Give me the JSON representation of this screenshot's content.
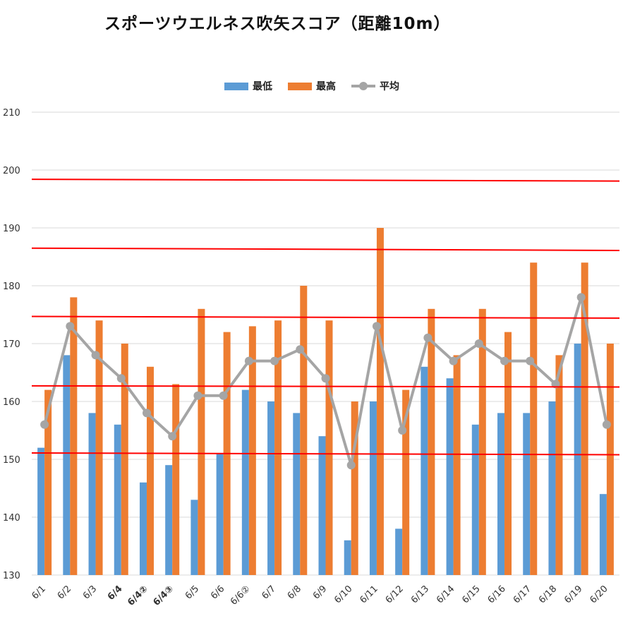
{
  "chart_data": {
    "type": "bar",
    "title": "スポーツウエルネス吹矢スコア（距離10m）",
    "categories": [
      "6/1",
      "6/2",
      "6/3",
      "6/4",
      "6/4②",
      "6/4③",
      "6/5",
      "6/6",
      "6/6②",
      "6/7",
      "6/8",
      "6/9",
      "6/10",
      "6/11",
      "6/12",
      "6/13",
      "6/14",
      "6/15",
      "6/16",
      "6/17",
      "6/18",
      "6/19",
      "6/20"
    ],
    "bold_categories": [
      "6/4",
      "6/4②",
      "6/4③"
    ],
    "series": [
      {
        "name": "最低",
        "type": "bar",
        "color": "#5b9bd5",
        "values": [
          152,
          168,
          158,
          156,
          146,
          149,
          143,
          151,
          162,
          160,
          158,
          154,
          136,
          160,
          138,
          166,
          164,
          156,
          158,
          158,
          160,
          170,
          144
        ]
      },
      {
        "name": "最高",
        "type": "bar",
        "color": "#ed7d31",
        "values": [
          162,
          178,
          174,
          170,
          166,
          163,
          176,
          172,
          173,
          174,
          180,
          174,
          160,
          190,
          162,
          176,
          168,
          176,
          172,
          184,
          168,
          184,
          170
        ]
      },
      {
        "name": "平均",
        "type": "line",
        "color": "#a5a5a5",
        "values": [
          156,
          173,
          168,
          164,
          158,
          154,
          161,
          161,
          167,
          167,
          169,
          164,
          149,
          173,
          155,
          171,
          167,
          170,
          167,
          167,
          163,
          178,
          156
        ]
      }
    ],
    "ylim": [
      130,
      210
    ],
    "yticks": [
      130,
      140,
      150,
      160,
      170,
      180,
      190,
      200,
      210
    ],
    "grid": true,
    "legend": "top-center",
    "reference_lines": [
      {
        "y_left": 198.4,
        "y_right": 198.1,
        "color": "#ff0000"
      },
      {
        "y_left": 186.5,
        "y_right": 186.1,
        "color": "#ff0000"
      },
      {
        "y_left": 174.7,
        "y_right": 174.4,
        "color": "#ff0000"
      },
      {
        "y_left": 162.7,
        "y_right": 162.5,
        "color": "#ff0000"
      },
      {
        "y_left": 151.1,
        "y_right": 150.8,
        "color": "#ff0000"
      }
    ]
  }
}
